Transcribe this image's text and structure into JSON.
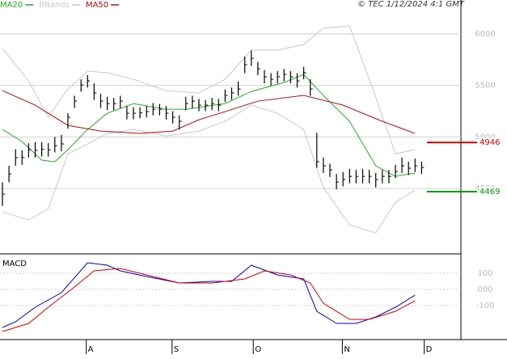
{
  "chart_data": [
    {
      "type": "ohlc",
      "note": "© TEC 1/12/2024 4:1 GMT",
      "xlim": [
        -0.37,
        70
      ],
      "ylim": [
        3880,
        6330
      ],
      "yticks": [
        4500,
        5000,
        5500,
        6000
      ],
      "bar_color": "#000000",
      "x": [
        0,
        1,
        2,
        3,
        4,
        5,
        6,
        7,
        8,
        9,
        10,
        11,
        12,
        13,
        14,
        15,
        16,
        17,
        18,
        19,
        20,
        21,
        22,
        23,
        24,
        25,
        26,
        27,
        28,
        29,
        30,
        31,
        32,
        33,
        34,
        35,
        36,
        37,
        38,
        39,
        40,
        41,
        42,
        43,
        44,
        45,
        46,
        47,
        48,
        49,
        50,
        51,
        52,
        53,
        54,
        55,
        56,
        57,
        58,
        59,
        60,
        61,
        62,
        63,
        64
      ],
      "high": [
        4560,
        4720,
        4880,
        4870,
        4940,
        4950,
        4950,
        4940,
        5000,
        5020,
        5230,
        5400,
        5560,
        5600,
        5520,
        5420,
        5390,
        5380,
        5400,
        5300,
        5290,
        5290,
        5300,
        5330,
        5320,
        5300,
        5250,
        5210,
        5390,
        5400,
        5370,
        5360,
        5380,
        5370,
        5460,
        5480,
        5540,
        5780,
        5840,
        5730,
        5650,
        5620,
        5640,
        5660,
        5640,
        5620,
        5680,
        5560,
        5040,
        4800,
        4740,
        4640,
        4660,
        4690,
        4680,
        4690,
        4680,
        4650,
        4680,
        4680,
        4730,
        4800,
        4760,
        4790,
        4760
      ],
      "low": [
        4330,
        4560,
        4720,
        4730,
        4800,
        4800,
        4810,
        4810,
        4850,
        4860,
        5080,
        5280,
        5440,
        5480,
        5360,
        5280,
        5260,
        5260,
        5280,
        5170,
        5170,
        5180,
        5190,
        5210,
        5210,
        5170,
        5130,
        5070,
        5260,
        5280,
        5250,
        5250,
        5260,
        5250,
        5340,
        5360,
        5400,
        5620,
        5690,
        5600,
        5520,
        5500,
        5520,
        5540,
        5520,
        5480,
        5560,
        5400,
        4700,
        4650,
        4610,
        4490,
        4520,
        4550,
        4550,
        4550,
        4550,
        4510,
        4550,
        4550,
        4600,
        4650,
        4630,
        4660,
        4640
      ],
      "close": [
        4445,
        4641,
        4798,
        4800,
        4877,
        4870,
        4880,
        4875,
        4916,
        4932,
        5191,
        5348,
        5505,
        5544,
        5427,
        5348,
        5324,
        5324,
        5348,
        5230,
        5230,
        5235,
        5246,
        5269,
        5269,
        5230,
        5191,
        5152,
        5324,
        5348,
        5309,
        5309,
        5324,
        5309,
        5403,
        5427,
        5466,
        5701,
        5764,
        5662,
        5584,
        5560,
        5584,
        5607,
        5584,
        5544,
        5623,
        5466,
        4759,
        4720,
        4680,
        4562,
        4586,
        4617,
        4617,
        4617,
        4617,
        4586,
        4617,
        4617,
        4665,
        4720,
        4696,
        4720,
        4704
      ],
      "series": [
        {
          "name": "MA20",
          "color": "#22aa22",
          "x": [
            0,
            3,
            6,
            8,
            10,
            13,
            16,
            20,
            25,
            28,
            34,
            38,
            43,
            46,
            49,
            53,
            57,
            60,
            63
          ],
          "values": [
            5073,
            4955,
            4775,
            4759,
            4877,
            5073,
            5230,
            5324,
            5269,
            5269,
            5324,
            5442,
            5529,
            5607,
            5403,
            5152,
            4720,
            4617,
            4649
          ]
        },
        {
          "name": "BBands",
          "color": "#c8c8c8",
          "x": [
            0,
            4,
            7,
            10,
            13,
            16,
            20,
            25,
            30,
            34,
            38,
            42,
            46,
            49,
            53,
            57,
            60,
            63
          ],
          "values": [
            5859,
            5544,
            5191,
            5466,
            5639,
            5623,
            5560,
            5450,
            5427,
            5560,
            5843,
            5843,
            5898,
            6055,
            6079,
            5387,
            4837,
            4877
          ],
          "lower": [
            4272,
            4193,
            4303,
            4837,
            4932,
            5034,
            5073,
            5010,
            5057,
            5152,
            5309,
            5230,
            5073,
            4508,
            4146,
            4068,
            4366,
            4484
          ]
        },
        {
          "name": "MA50",
          "color": "#aa1111",
          "x": [
            0,
            5,
            10,
            15,
            21,
            26,
            30,
            34,
            39,
            46,
            52,
            58,
            63
          ],
          "values": [
            5450,
            5309,
            5112,
            5057,
            5034,
            5057,
            5167,
            5246,
            5348,
            5403,
            5309,
            5152,
            5034
          ]
        }
      ],
      "markers": [
        {
          "value": 4946,
          "color": "#cc0000"
        },
        {
          "value": 4469,
          "color": "#009900"
        }
      ]
    },
    {
      "type": "line",
      "title": "MACD",
      "xlim": [
        -0.37,
        70
      ],
      "ylim": [
        -310,
        210
      ],
      "yticks": [
        {
          "value": 100,
          "label": "100"
        },
        {
          "value": 0,
          "label": "000"
        },
        {
          "value": -100,
          "label": "-100"
        }
      ],
      "xticks": [
        {
          "value": 12.8,
          "label": "A"
        },
        {
          "value": 25.9,
          "label": "S"
        },
        {
          "value": 38.3,
          "label": "O"
        },
        {
          "value": 51.9,
          "label": "N"
        },
        {
          "value": 64.4,
          "label": "D"
        }
      ],
      "series": [
        {
          "color": "#0000cc",
          "x": [
            0,
            2,
            5,
            9,
            13,
            16,
            18,
            22,
            27,
            32,
            35,
            38,
            42,
            46,
            48,
            51,
            54,
            57,
            60,
            63
          ],
          "values": [
            -235,
            -200,
            -110,
            -20,
            165,
            150,
            115,
            80,
            40,
            50,
            50,
            150,
            90,
            65,
            -135,
            -210,
            -210,
            -170,
            -110,
            -35
          ]
        },
        {
          "color": "#cc0000",
          "x": [
            0,
            4,
            7,
            11,
            14,
            18,
            22,
            27,
            32,
            37,
            40,
            44,
            47,
            49,
            53,
            56,
            60,
            63
          ],
          "values": [
            -260,
            -210,
            -110,
            15,
            115,
            130,
            90,
            40,
            40,
            65,
            115,
            90,
            40,
            -85,
            -185,
            -185,
            -135,
            -70
          ]
        }
      ]
    }
  ]
}
